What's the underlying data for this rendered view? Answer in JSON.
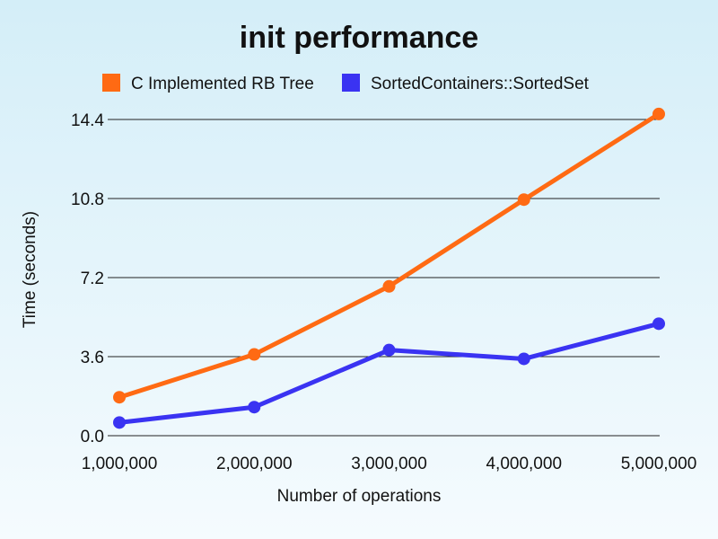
{
  "chart_data": {
    "type": "line",
    "title": "init performance",
    "xlabel": "Number of operations",
    "ylabel": "Time (seconds)",
    "x": [
      1000000,
      2000000,
      3000000,
      4000000,
      5000000
    ],
    "x_tick_labels": [
      "1,000,000",
      "2,000,000",
      "3,000,000",
      "4,000,000",
      "5,000,000"
    ],
    "y_ticks": [
      0.0,
      3.6,
      7.2,
      10.8,
      14.4
    ],
    "y_tick_labels": [
      "0.0",
      "3.6",
      "7.2",
      "10.8",
      "14.4"
    ],
    "ylim": [
      0,
      14.4
    ],
    "grid": true,
    "legend_position": "top",
    "series": [
      {
        "name": "C Implemented RB Tree",
        "color": "#ff6a13",
        "values": [
          1.75,
          3.7,
          6.8,
          10.75,
          14.65
        ]
      },
      {
        "name": "SortedContainers::SortedSet",
        "color": "#3a33f2",
        "values": [
          0.6,
          1.3,
          3.9,
          3.5,
          5.1
        ]
      }
    ]
  }
}
